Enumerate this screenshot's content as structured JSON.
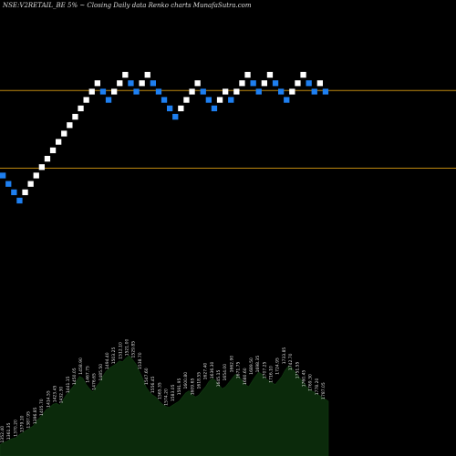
{
  "title": "NSE:V2RETAIL_BE 5% ~  Closing Daily data  Renko  charts MunafaSutra.com",
  "colors": {
    "background": "#000000",
    "up_brick": "#ffffff",
    "down_brick": "#1e7ff0",
    "reference_line": "#c08a10",
    "volume_fill": "#0b2a0b",
    "label": "#dddddd"
  },
  "chart_data": {
    "type": "renko",
    "brick_pct": 5,
    "reference_lines": [
      {
        "level": 9.85
      },
      {
        "level": 6.15
      }
    ],
    "bricks": [
      {
        "level": 5.8,
        "dir": "down"
      },
      {
        "level": 5.4,
        "dir": "down"
      },
      {
        "level": 5.0,
        "dir": "down"
      },
      {
        "level": 4.6,
        "dir": "down"
      },
      {
        "level": 5.0,
        "dir": "up"
      },
      {
        "level": 5.4,
        "dir": "up"
      },
      {
        "level": 5.8,
        "dir": "up"
      },
      {
        "level": 6.2,
        "dir": "up"
      },
      {
        "level": 6.6,
        "dir": "up"
      },
      {
        "level": 7.0,
        "dir": "up"
      },
      {
        "level": 7.4,
        "dir": "up"
      },
      {
        "level": 7.8,
        "dir": "up"
      },
      {
        "level": 8.2,
        "dir": "up"
      },
      {
        "level": 8.6,
        "dir": "up"
      },
      {
        "level": 9.0,
        "dir": "up"
      },
      {
        "level": 9.4,
        "dir": "up"
      },
      {
        "level": 9.8,
        "dir": "up"
      },
      {
        "level": 10.2,
        "dir": "up"
      },
      {
        "level": 9.8,
        "dir": "down"
      },
      {
        "level": 9.4,
        "dir": "down"
      },
      {
        "level": 9.8,
        "dir": "up"
      },
      {
        "level": 10.2,
        "dir": "up"
      },
      {
        "level": 10.6,
        "dir": "up"
      },
      {
        "level": 10.2,
        "dir": "down"
      },
      {
        "level": 9.8,
        "dir": "down"
      },
      {
        "level": 10.2,
        "dir": "up"
      },
      {
        "level": 10.6,
        "dir": "up"
      },
      {
        "level": 10.2,
        "dir": "down"
      },
      {
        "level": 9.8,
        "dir": "down"
      },
      {
        "level": 9.4,
        "dir": "down"
      },
      {
        "level": 9.0,
        "dir": "down"
      },
      {
        "level": 8.6,
        "dir": "down"
      },
      {
        "level": 9.0,
        "dir": "up"
      },
      {
        "level": 9.4,
        "dir": "up"
      },
      {
        "level": 9.8,
        "dir": "up"
      },
      {
        "level": 10.2,
        "dir": "up"
      },
      {
        "level": 9.8,
        "dir": "down"
      },
      {
        "level": 9.4,
        "dir": "down"
      },
      {
        "level": 9.0,
        "dir": "down"
      },
      {
        "level": 9.4,
        "dir": "up"
      },
      {
        "level": 9.8,
        "dir": "up"
      },
      {
        "level": 9.4,
        "dir": "down"
      },
      {
        "level": 9.8,
        "dir": "up"
      },
      {
        "level": 10.2,
        "dir": "up"
      },
      {
        "level": 10.6,
        "dir": "up"
      },
      {
        "level": 10.2,
        "dir": "down"
      },
      {
        "level": 9.8,
        "dir": "down"
      },
      {
        "level": 10.2,
        "dir": "up"
      },
      {
        "level": 10.6,
        "dir": "up"
      },
      {
        "level": 10.2,
        "dir": "down"
      },
      {
        "level": 9.8,
        "dir": "down"
      },
      {
        "level": 9.4,
        "dir": "down"
      },
      {
        "level": 9.8,
        "dir": "up"
      },
      {
        "level": 10.2,
        "dir": "up"
      },
      {
        "level": 10.6,
        "dir": "up"
      },
      {
        "level": 10.2,
        "dir": "down"
      },
      {
        "level": 9.8,
        "dir": "down"
      },
      {
        "level": 10.2,
        "dir": "up"
      },
      {
        "level": 9.8,
        "dir": "down"
      }
    ],
    "volume_profile": [
      4,
      6,
      7,
      9,
      10,
      11,
      14,
      16,
      18,
      20,
      22,
      27,
      30,
      34,
      38,
      40,
      43,
      44,
      42,
      47,
      52,
      56,
      60,
      65,
      70,
      68,
      62,
      58,
      55,
      60,
      64,
      70,
      75,
      78,
      80,
      82,
      85,
      84,
      88,
      90,
      86,
      82,
      75,
      68,
      60,
      55,
      52,
      50,
      46,
      43,
      41,
      40,
      42,
      44,
      46,
      50,
      54,
      56,
      52,
      50,
      52,
      56,
      60,
      65,
      68,
      66,
      62,
      58,
      60,
      64,
      68,
      72,
      70,
      66,
      62,
      60,
      65,
      70,
      74,
      72,
      68,
      66,
      64,
      62,
      66,
      70,
      76,
      80,
      78,
      74,
      70,
      66,
      62,
      58,
      56,
      54,
      52,
      50,
      48,
      46
    ],
    "volume_labels": [
      "1352.40",
      "1361.35",
      "1370.20",
      "1379.10",
      "1387.95",
      "1396.85",
      "1405.70",
      "1414.55",
      "1423.45",
      "1432.30",
      "1441.15",
      "1450.05",
      "1458.90",
      "1467.75",
      "1476.65",
      "1485.50",
      "1494.40",
      "1503.25",
      "1512.10",
      "1521.00",
      "1529.85",
      "1538.70",
      "1547.60",
      "1556.45",
      "1565.35",
      "1574.20",
      "1583.05",
      "1591.95",
      "1600.80",
      "1609.65",
      "1618.55",
      "1627.40",
      "1636.30",
      "1645.15",
      "1654.00",
      "1662.90",
      "1671.75",
      "1680.60",
      "1689.50",
      "1698.35",
      "1707.25",
      "1716.10",
      "1724.95",
      "1733.85",
      "1742.70",
      "1751.55",
      "1760.45",
      "1769.30",
      "1778.20",
      "1787.05"
    ]
  }
}
